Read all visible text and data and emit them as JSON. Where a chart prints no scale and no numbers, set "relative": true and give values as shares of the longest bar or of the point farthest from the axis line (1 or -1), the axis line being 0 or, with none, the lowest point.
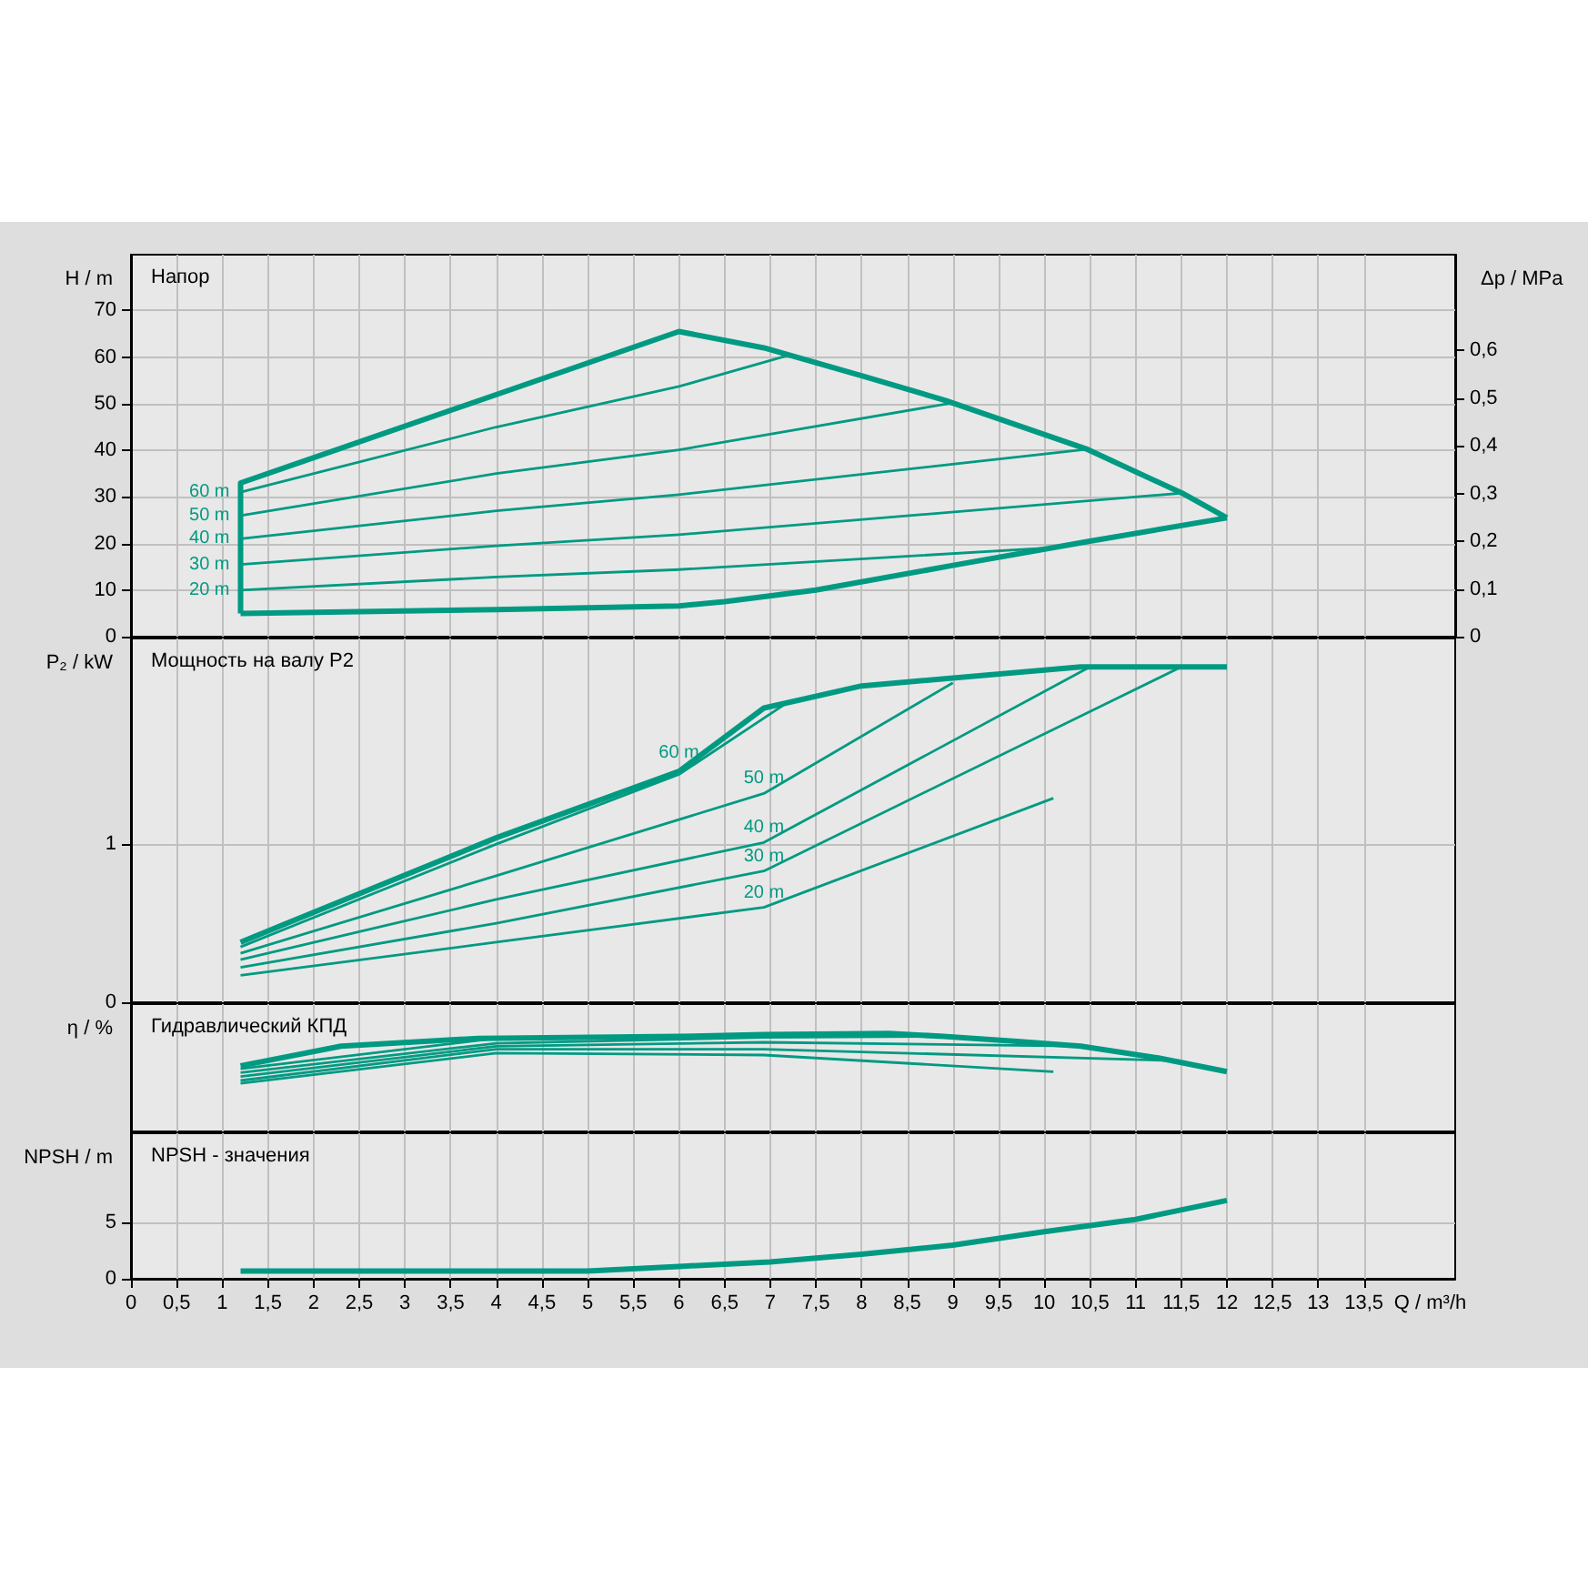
{
  "chart_data": [
    {
      "type": "line",
      "title": "Напор",
      "ylabel": "H / m",
      "y2label": "Δp / MPa",
      "xlim": [
        0,
        14.5
      ],
      "ylim": [
        0,
        82
      ],
      "y2lim": [
        0,
        0.8
      ],
      "xticks": [
        0,
        0.5,
        1,
        1.5,
        2,
        2.5,
        3,
        3.5,
        4,
        4.5,
        5,
        5.5,
        6,
        6.5,
        7,
        7.5,
        8,
        8.5,
        9,
        9.5,
        10,
        10.5,
        11,
        11.5,
        12,
        12.5,
        13,
        13.5
      ],
      "yticks": [
        0,
        10,
        20,
        30,
        40,
        50,
        60,
        70
      ],
      "y2ticks": [
        0,
        {
          "value": 0.1,
          "label": "0,1"
        },
        {
          "value": 0.2,
          "label": "0,2"
        },
        {
          "value": 0.3,
          "label": "0,3"
        },
        {
          "value": 0.4,
          "label": "0,4"
        },
        {
          "value": 0.5,
          "label": "0,5"
        },
        {
          "value": 0.6,
          "label": "0,6"
        }
      ],
      "tick_labels": "y",
      "grid": true,
      "legend": false,
      "marker": "none",
      "line_style": "solid",
      "series": [
        {
          "color": "#009a82",
          "x": [
            1.2,
            1.2,
            6,
            6.93,
            8,
            8.92,
            10.46,
            11.51,
            12
          ],
          "values": [
            5,
            33,
            65.5,
            62,
            56,
            50.7,
            40.3,
            30.8,
            25.5
          ]
        },
        {
          "color": "#009a82",
          "x": [
            1.2,
            4,
            6,
            6.5,
            7.5,
            9,
            10.5,
            12
          ],
          "values": [
            5,
            5.8,
            6.6,
            7.5,
            10,
            15.3,
            20.5,
            25.5
          ]
        },
        {
          "name": "60 m",
          "color": "#009a82",
          "x": [
            1.2,
            4,
            6,
            7.2
          ],
          "values": [
            31,
            45,
            53.7,
            60.4
          ]
        },
        {
          "name": "50 m",
          "color": "#009a82",
          "x": [
            1.2,
            4,
            6,
            9
          ],
          "values": [
            26,
            35,
            40.1,
            50.2
          ]
        },
        {
          "name": "40 m",
          "color": "#009a82",
          "x": [
            1.2,
            4,
            6,
            10.5
          ],
          "values": [
            21,
            27,
            30.5,
            40.3
          ]
        },
        {
          "name": "30 m",
          "color": "#009a82",
          "x": [
            1.2,
            4,
            6,
            11.5
          ],
          "values": [
            15.5,
            19.5,
            21.9,
            30.8
          ]
        },
        {
          "name": "20 m",
          "color": "#009a82",
          "x": [
            1.2,
            4,
            6,
            10.1
          ],
          "values": [
            10,
            12.8,
            14.4,
            19.1
          ]
        }
      ]
    },
    {
      "type": "line",
      "title": "Мощность на валу P2",
      "ylabel": "P₂ / kW",
      "xlim": [
        0,
        14.5
      ],
      "ylim": [
        0,
        2.3
      ],
      "xticks": [
        0,
        0.5,
        1,
        1.5,
        2,
        2.5,
        3,
        3.5,
        4,
        4.5,
        5,
        5.5,
        6,
        6.5,
        7,
        7.5,
        8,
        8.5,
        9,
        9.5,
        10,
        10.5,
        11,
        11.5,
        12,
        12.5,
        13,
        13.5
      ],
      "yticks": [
        0,
        1
      ],
      "tick_labels": "y",
      "grid": true,
      "legend": false,
      "marker": "none",
      "line_style": "solid",
      "series": [
        {
          "color": "#009a82",
          "x": [
            1.2,
            4,
            6,
            6.93,
            8,
            10.4,
            12
          ],
          "values": [
            0.38,
            1.04,
            1.46,
            1.86,
            2,
            2.12,
            2.12
          ]
        },
        {
          "name": "60 m",
          "color": "#009a82",
          "x": [
            1.2,
            4,
            6,
            7.2
          ],
          "values": [
            0.35,
            1,
            1.44,
            1.9
          ]
        },
        {
          "name": "50 m",
          "color": "#009a82",
          "x": [
            1.2,
            4,
            6.93,
            9
          ],
          "values": [
            0.31,
            0.8,
            1.32,
            2.02
          ]
        },
        {
          "name": "40 m",
          "color": "#009a82",
          "x": [
            1.2,
            4,
            6.93,
            10.5
          ],
          "values": [
            0.27,
            0.65,
            1.01,
            2.12
          ]
        },
        {
          "name": "30 m",
          "color": "#009a82",
          "x": [
            1.2,
            4,
            6.93,
            11.5
          ],
          "values": [
            0.22,
            0.5,
            0.83,
            2.12
          ]
        },
        {
          "name": "20 m",
          "color": "#009a82",
          "x": [
            1.2,
            4,
            6.93,
            10.1
          ],
          "values": [
            0.17,
            0.38,
            0.6,
            1.29
          ]
        }
      ]
    },
    {
      "type": "line",
      "title": "Гидравлический КПД",
      "ylabel": "η / %",
      "relative": true,
      "xlim": [
        0,
        14.5
      ],
      "xticks": [
        0,
        0.5,
        1,
        1.5,
        2,
        2.5,
        3,
        3.5,
        4,
        4.5,
        5,
        5.5,
        6,
        6.5,
        7,
        7.5,
        8,
        8.5,
        9,
        9.5,
        10,
        10.5,
        11,
        11.5,
        12,
        12.5,
        13,
        13.5
      ],
      "tick_labels": false,
      "grid": "x",
      "legend": false,
      "marker": "none",
      "line_style": "solid",
      "series": [
        {
          "color": "#009a82",
          "x": [
            1.2,
            2.3,
            3.8,
            6,
            6.93,
            8.3,
            8.9,
            9.7,
            10.4,
            11.25,
            12
          ],
          "values": [
            0.67,
            0.87,
            0.95,
            0.97,
            0.99,
            1,
            0.97,
            0.92,
            0.87,
            0.75,
            0.61
          ]
        },
        {
          "color": "#009a82",
          "x": [
            1.2,
            4,
            7.2
          ],
          "values": [
            0.64,
            0.95,
            0.99
          ]
        },
        {
          "color": "#009a82",
          "x": [
            1.2,
            4,
            6.93,
            9
          ],
          "values": [
            0.6,
            0.9,
            0.96,
            0.97
          ]
        },
        {
          "color": "#009a82",
          "x": [
            1.2,
            4,
            6.93,
            10.5
          ],
          "values": [
            0.56,
            0.87,
            0.91,
            0.87
          ]
        },
        {
          "color": "#009a82",
          "x": [
            1.2,
            4,
            6.93,
            11.5
          ],
          "values": [
            0.52,
            0.84,
            0.84,
            0.72
          ]
        },
        {
          "color": "#009a82",
          "x": [
            1.2,
            4,
            6.93,
            10.1
          ],
          "values": [
            0.49,
            0.8,
            0.78,
            0.61
          ]
        }
      ]
    },
    {
      "type": "line",
      "title": "NPSH - значения",
      "ylabel": "NPSH / m",
      "xlabel": "Q / m³/h",
      "xlim": [
        0,
        14.5
      ],
      "ylim": [
        0,
        13
      ],
      "xticks": [
        0,
        {
          "value": 0.5,
          "label": "0,5"
        },
        1,
        {
          "value": 1.5,
          "label": "1,5"
        },
        2,
        {
          "value": 2.5,
          "label": "2,5"
        },
        3,
        {
          "value": 3.5,
          "label": "3,5"
        },
        4,
        {
          "value": 4.5,
          "label": "4,5"
        },
        5,
        {
          "value": 5.5,
          "label": "5,5"
        },
        6,
        {
          "value": 6.5,
          "label": "6,5"
        },
        7,
        {
          "value": 7.5,
          "label": "7,5"
        },
        8,
        {
          "value": 8.5,
          "label": "8,5"
        },
        9,
        {
          "value": 9.5,
          "label": "9,5"
        },
        10,
        {
          "value": 10.5,
          "label": "10,5"
        },
        11,
        {
          "value": 11.5,
          "label": "11,5"
        },
        12,
        {
          "value": 12.5,
          "label": "12,5"
        },
        13,
        {
          "value": 13.5,
          "label": "13,5"
        }
      ],
      "yticks": [
        0,
        5
      ],
      "grid": true,
      "legend": false,
      "marker": "none",
      "line_style": "solid",
      "series": [
        {
          "color": "#009a82",
          "x": [
            1.2,
            3,
            5,
            5.5,
            6,
            7,
            8,
            9,
            10,
            11,
            12
          ],
          "values": [
            0.7,
            0.7,
            0.7,
            0.9,
            1.1,
            1.5,
            2.2,
            3,
            4.2,
            5.3,
            7
          ]
        }
      ]
    }
  ]
}
